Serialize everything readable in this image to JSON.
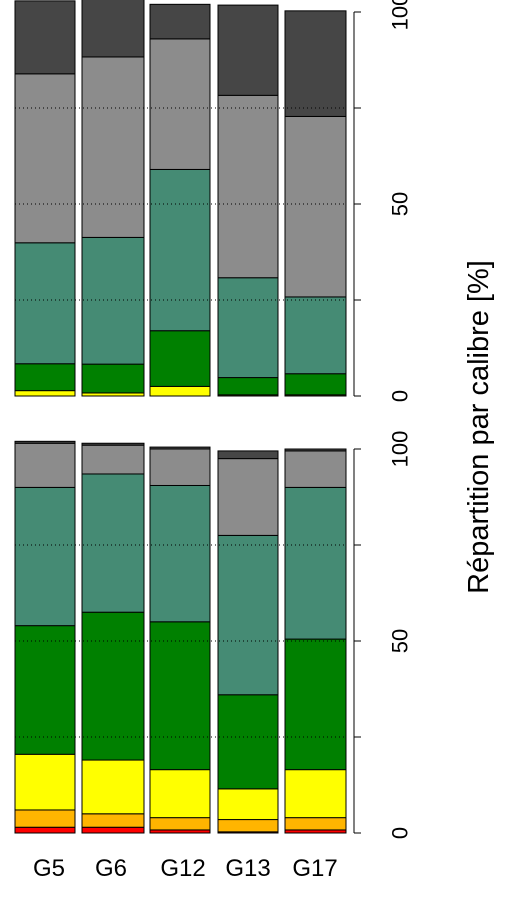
{
  "chart_data": [
    {
      "type": "bar",
      "stacked": true,
      "orientation": "vertical-rotated",
      "categories": [
        "G5",
        "G6",
        "G12",
        "G13",
        "G17"
      ],
      "ylabel": "Répartition par calibre [%]",
      "ylim": [
        0,
        100
      ],
      "yticks": [
        0,
        50,
        100
      ],
      "grid": "dotted at 25, 50, 75",
      "series": [
        {
          "color": "#FFFF00",
          "values": [
            1.4,
            0.8,
            2.5,
            0.3,
            0.3
          ]
        },
        {
          "color": "#008000",
          "values": [
            7.0,
            7.5,
            14.5,
            4.5,
            5.5
          ]
        },
        {
          "color": "#458B74",
          "values": [
            31.5,
            33.0,
            42.0,
            26.0,
            20.0
          ]
        },
        {
          "color": "#8C8C8C",
          "values": [
            44.0,
            47.0,
            34.0,
            47.5,
            47.0
          ]
        },
        {
          "color": "#464646",
          "values": [
            19.0,
            19.0,
            9.0,
            23.5,
            27.5
          ]
        }
      ]
    },
    {
      "type": "bar",
      "stacked": true,
      "orientation": "vertical-rotated",
      "categories": [
        "G5",
        "G6",
        "G12",
        "G13",
        "G17"
      ],
      "ylabel": "",
      "ylim": [
        0,
        100
      ],
      "yticks": [
        0,
        50,
        100
      ],
      "grid": "dotted at 25, 50, 75",
      "series": [
        {
          "color": "#FF0000",
          "values": [
            1.5,
            1.5,
            0.8,
            0.3,
            0.8
          ]
        },
        {
          "color": "#FFB500",
          "values": [
            4.5,
            3.5,
            3.2,
            3.2,
            3.2
          ]
        },
        {
          "color": "#FFFF00",
          "values": [
            14.5,
            14.0,
            12.5,
            8.0,
            12.5
          ]
        },
        {
          "color": "#008000",
          "values": [
            33.5,
            38.5,
            38.5,
            24.5,
            34.0
          ]
        },
        {
          "color": "#458B74",
          "values": [
            36.0,
            36.0,
            35.5,
            41.5,
            39.5
          ]
        },
        {
          "color": "#8C8C8C",
          "values": [
            11.5,
            7.5,
            9.5,
            20.0,
            9.5
          ]
        },
        {
          "color": "#464646",
          "values": [
            0.5,
            0.5,
            0.5,
            2.0,
            0.5
          ]
        }
      ]
    }
  ]
}
